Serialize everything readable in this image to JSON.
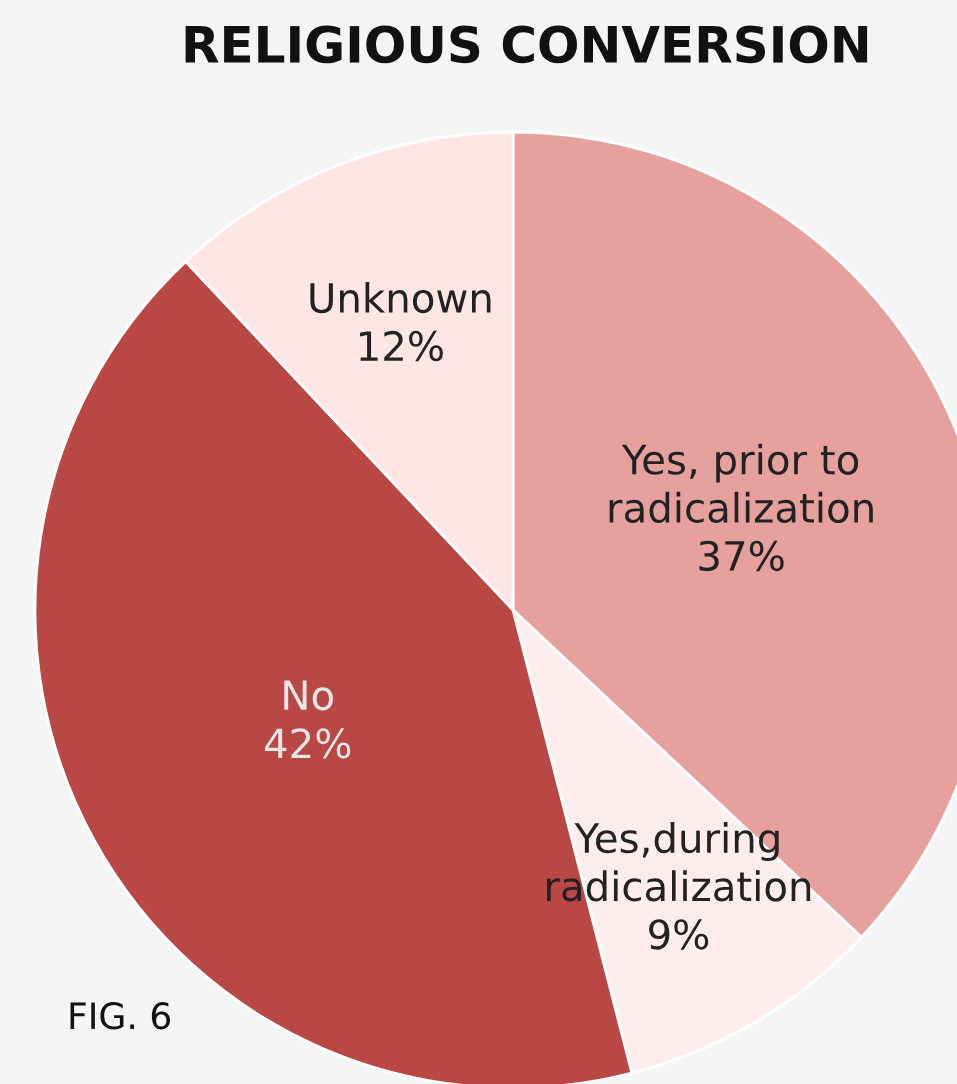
{
  "chart_data": {
    "type": "pie",
    "title": "RELIGIOUS CONVERSION",
    "categories": [
      "Yes, prior to\nradicalization",
      "Yes,during\nradicalization",
      "No",
      "Unknown"
    ],
    "values": [
      37,
      9,
      42,
      12
    ],
    "value_labels": [
      "37%",
      "9%",
      "42%",
      "12%"
    ],
    "colors": [
      "#e6a09e",
      "#fdeeed",
      "#b94744",
      "#fde6e4"
    ],
    "annotations": [
      "FIG. 6"
    ]
  }
}
